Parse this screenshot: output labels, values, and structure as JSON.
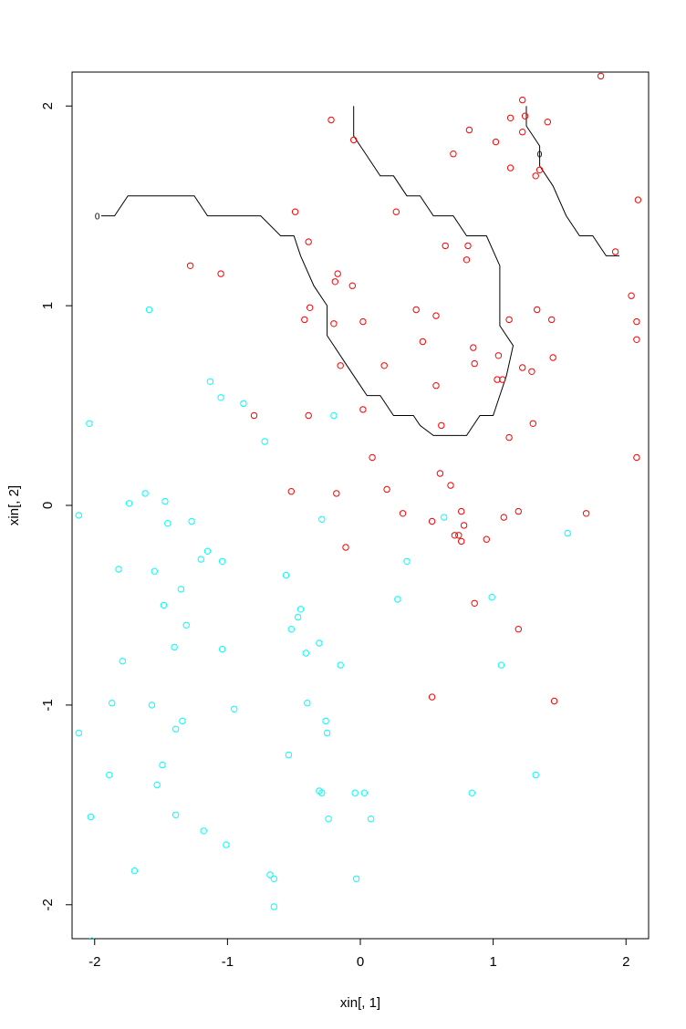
{
  "chart_data": {
    "type": "scatter",
    "title": "",
    "xlabel": "xin[, 1]",
    "ylabel": "xin[, 2]",
    "xlim": [
      -2.17,
      2.17
    ],
    "ylim": [
      -2.17,
      2.17
    ],
    "xticks": [
      -2,
      -1,
      0,
      1,
      2
    ],
    "yticks": [
      -2,
      -1,
      0,
      1,
      2
    ],
    "grid": false,
    "legend": "none",
    "colors": {
      "class_1": "#ff0000",
      "class_0": "#00ffff",
      "boundary": "#000000"
    },
    "series": [
      {
        "color": "#ff0000",
        "marker": "open-circle",
        "points": [
          [
            -0.22,
            1.93
          ],
          [
            -0.05,
            1.83
          ],
          [
            0.7,
            1.76
          ],
          [
            0.82,
            1.88
          ],
          [
            1.02,
            1.82
          ],
          [
            1.13,
            1.94
          ],
          [
            1.22,
            2.03
          ],
          [
            1.22,
            1.87
          ],
          [
            1.24,
            1.95
          ],
          [
            1.41,
            1.92
          ],
          [
            1.13,
            1.69
          ],
          [
            1.32,
            1.65
          ],
          [
            1.35,
            1.68
          ],
          [
            1.81,
            2.15
          ],
          [
            2.09,
            1.53
          ],
          [
            0.27,
            1.47
          ],
          [
            -0.49,
            1.47
          ],
          [
            -0.39,
            1.32
          ],
          [
            0.64,
            1.3
          ],
          [
            0.81,
            1.3
          ],
          [
            0.8,
            1.23
          ],
          [
            1.92,
            1.27
          ],
          [
            -1.28,
            1.2
          ],
          [
            -1.05,
            1.16
          ],
          [
            -0.17,
            1.16
          ],
          [
            -0.19,
            1.12
          ],
          [
            -0.06,
            1.1
          ],
          [
            2.04,
            1.05
          ],
          [
            -0.38,
            0.99
          ],
          [
            0.42,
            0.98
          ],
          [
            1.33,
            0.98
          ],
          [
            -0.42,
            0.93
          ],
          [
            0.57,
            0.95
          ],
          [
            0.02,
            0.92
          ],
          [
            1.12,
            0.93
          ],
          [
            1.44,
            0.93
          ],
          [
            2.08,
            0.92
          ],
          [
            -0.2,
            0.91
          ],
          [
            0.47,
            0.82
          ],
          [
            2.08,
            0.83
          ],
          [
            0.85,
            0.79
          ],
          [
            1.04,
            0.75
          ],
          [
            1.45,
            0.74
          ],
          [
            -0.15,
            0.7
          ],
          [
            0.18,
            0.7
          ],
          [
            0.86,
            0.71
          ],
          [
            1.22,
            0.69
          ],
          [
            1.29,
            0.67
          ],
          [
            1.03,
            0.63
          ],
          [
            1.07,
            0.63
          ],
          [
            0.57,
            0.6
          ],
          [
            -0.8,
            0.45
          ],
          [
            -0.39,
            0.45
          ],
          [
            0.02,
            0.48
          ],
          [
            0.61,
            0.4
          ],
          [
            1.3,
            0.41
          ],
          [
            1.12,
            0.34
          ],
          [
            0.09,
            0.24
          ],
          [
            2.08,
            0.24
          ],
          [
            0.6,
            0.16
          ],
          [
            0.68,
            0.1
          ],
          [
            -0.52,
            0.07
          ],
          [
            0.2,
            0.08
          ],
          [
            -0.18,
            0.06
          ],
          [
            0.32,
            -0.04
          ],
          [
            0.54,
            -0.08
          ],
          [
            0.76,
            -0.03
          ],
          [
            1.08,
            -0.06
          ],
          [
            1.19,
            -0.03
          ],
          [
            1.7,
            -0.04
          ],
          [
            0.71,
            -0.15
          ],
          [
            0.74,
            -0.15
          ],
          [
            0.78,
            -0.1
          ],
          [
            0.76,
            -0.18
          ],
          [
            0.95,
            -0.17
          ],
          [
            -0.11,
            -0.21
          ],
          [
            0.86,
            -0.49
          ],
          [
            1.19,
            -0.62
          ],
          [
            0.54,
            -0.96
          ],
          [
            1.46,
            -0.98
          ]
        ]
      },
      {
        "color": "#00ffff",
        "marker": "open-circle",
        "points": [
          [
            -1.59,
            0.98
          ],
          [
            -1.13,
            0.62
          ],
          [
            -1.05,
            0.54
          ],
          [
            -0.88,
            0.51
          ],
          [
            -0.72,
            0.32
          ],
          [
            -0.2,
            0.45
          ],
          [
            -2.04,
            0.41
          ],
          [
            -2.12,
            -0.05
          ],
          [
            -1.74,
            0.01
          ],
          [
            -1.62,
            0.06
          ],
          [
            -1.47,
            0.02
          ],
          [
            -1.45,
            -0.09
          ],
          [
            -1.27,
            -0.08
          ],
          [
            -0.29,
            -0.07
          ],
          [
            0.63,
            -0.06
          ],
          [
            1.56,
            -0.14
          ],
          [
            -1.15,
            -0.23
          ],
          [
            -1.2,
            -0.27
          ],
          [
            -1.04,
            -0.28
          ],
          [
            0.35,
            -0.28
          ],
          [
            -1.82,
            -0.32
          ],
          [
            -1.55,
            -0.33
          ],
          [
            -0.56,
            -0.35
          ],
          [
            -1.35,
            -0.42
          ],
          [
            0.28,
            -0.47
          ],
          [
            0.99,
            -0.46
          ],
          [
            -1.48,
            -0.5
          ],
          [
            -0.45,
            -0.52
          ],
          [
            -0.47,
            -0.56
          ],
          [
            -1.31,
            -0.6
          ],
          [
            -0.52,
            -0.62
          ],
          [
            -0.31,
            -0.69
          ],
          [
            -1.4,
            -0.71
          ],
          [
            -1.04,
            -0.72
          ],
          [
            -0.41,
            -0.74
          ],
          [
            -1.79,
            -0.78
          ],
          [
            -0.15,
            -0.8
          ],
          [
            1.06,
            -0.8
          ],
          [
            -1.87,
            -0.99
          ],
          [
            -1.57,
            -1.0
          ],
          [
            -0.4,
            -0.99
          ],
          [
            -0.95,
            -1.02
          ],
          [
            -1.34,
            -1.08
          ],
          [
            -0.26,
            -1.08
          ],
          [
            -1.39,
            -1.12
          ],
          [
            -2.12,
            -1.14
          ],
          [
            -0.25,
            -1.14
          ],
          [
            -0.54,
            -1.25
          ],
          [
            -1.49,
            -1.3
          ],
          [
            -1.89,
            -1.35
          ],
          [
            1.32,
            -1.35
          ],
          [
            -1.53,
            -1.4
          ],
          [
            -0.31,
            -1.43
          ],
          [
            -0.29,
            -1.44
          ],
          [
            -0.04,
            -1.44
          ],
          [
            0.03,
            -1.44
          ],
          [
            0.84,
            -1.44
          ],
          [
            -1.39,
            -1.55
          ],
          [
            -2.03,
            -1.56
          ],
          [
            -0.24,
            -1.57
          ],
          [
            0.08,
            -1.57
          ],
          [
            -1.18,
            -1.63
          ],
          [
            -1.01,
            -1.7
          ],
          [
            -1.7,
            -1.83
          ],
          [
            -0.68,
            -1.85
          ],
          [
            -0.65,
            -1.87
          ],
          [
            -0.03,
            -1.87
          ],
          [
            -0.65,
            -2.01
          ],
          [
            -2.02,
            -2.18
          ]
        ]
      }
    ],
    "contours": [
      [
        [
          -1.95,
          1.45
        ],
        [
          -1.85,
          1.45
        ],
        [
          -1.75,
          1.55
        ],
        [
          -1.25,
          1.55
        ],
        [
          -1.15,
          1.45
        ],
        [
          -0.75,
          1.45
        ],
        [
          -0.6,
          1.35
        ],
        [
          -0.5,
          1.35
        ],
        [
          -0.45,
          1.25
        ],
        [
          -0.35,
          1.1
        ],
        [
          -0.25,
          1.0
        ],
        [
          -0.25,
          0.85
        ],
        [
          -0.2,
          0.8
        ],
        [
          -0.1,
          0.7
        ],
        [
          0,
          0.6
        ],
        [
          0.05,
          0.55
        ],
        [
          0.15,
          0.55
        ],
        [
          0.25,
          0.45
        ],
        [
          0.4,
          0.45
        ],
        [
          0.45,
          0.4
        ],
        [
          0.55,
          0.35
        ],
        [
          0.8,
          0.35
        ],
        [
          0.85,
          0.4
        ],
        [
          0.9,
          0.45
        ],
        [
          1.0,
          0.45
        ],
        [
          1.05,
          0.55
        ],
        [
          1.1,
          0.65
        ],
        [
          1.15,
          0.8
        ],
        [
          1.05,
          0.9
        ],
        [
          1.05,
          1.2
        ],
        [
          0.95,
          1.35
        ],
        [
          0.8,
          1.35
        ],
        [
          0.7,
          1.45
        ],
        [
          0.55,
          1.45
        ],
        [
          0.45,
          1.55
        ],
        [
          0.35,
          1.55
        ],
        [
          0.25,
          1.65
        ],
        [
          0.15,
          1.65
        ],
        [
          0.05,
          1.75
        ],
        [
          0,
          1.8
        ],
        [
          -0.05,
          1.85
        ],
        [
          -0.05,
          2.0
        ]
      ],
      [
        [
          1.25,
          2.0
        ],
        [
          1.25,
          1.9
        ],
        [
          1.3,
          1.85
        ],
        [
          1.35,
          1.8
        ],
        [
          1.35,
          1.7
        ],
        [
          1.45,
          1.6
        ],
        [
          1.55,
          1.45
        ],
        [
          1.65,
          1.35
        ],
        [
          1.75,
          1.35
        ],
        [
          1.85,
          1.25
        ],
        [
          1.95,
          1.25
        ]
      ]
    ],
    "contour_labels": [
      {
        "text": "0",
        "x": -1.98,
        "y": 1.45
      },
      {
        "text": "0",
        "x": 1.35,
        "y": 1.76
      }
    ]
  }
}
